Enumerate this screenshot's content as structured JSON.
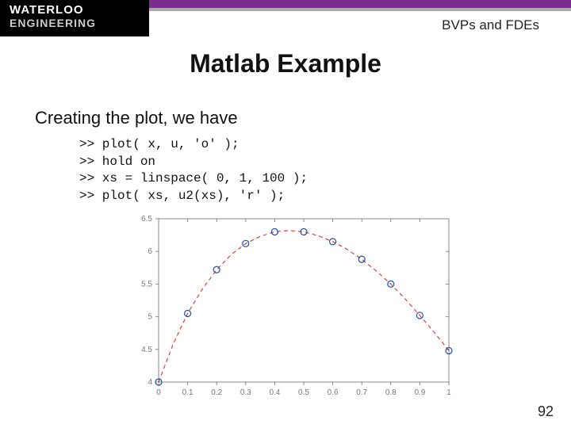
{
  "header": {
    "logo_line1": "WATERLOO",
    "logo_line2": "ENGINEERING",
    "section": "BVPs and FDEs",
    "purple": "#7b2d8e",
    "grey": "#aaaaaa"
  },
  "title": "Matlab Example",
  "body": "Creating the plot, we have",
  "code": [
    ">> plot( x, u, 'o' );",
    ">> hold on",
    ">> xs = linspace( 0, 1, 100 );",
    ">> plot( xs, u2(xs), 'r' );"
  ],
  "page_number": "92",
  "chart": {
    "type": "line-scatter",
    "background": "#ffffff",
    "axis_color": "#888888",
    "tick_color": "#777777",
    "tick_fontsize": 10,
    "marker_color": "#1f4fa8",
    "marker_style": "circle-open",
    "marker_size": 4,
    "line_color": "#d62020",
    "line_width": 1,
    "line_style": "dash",
    "xlim": [
      0,
      1
    ],
    "x_ticks": [
      0,
      0.1,
      0.2,
      0.3,
      0.4,
      0.5,
      0.6,
      0.7,
      0.8,
      0.9,
      1
    ],
    "ylim": [
      4,
      6.5
    ],
    "y_ticks": [
      4,
      4.5,
      5,
      5.5,
      6,
      6.5
    ],
    "markers": [
      {
        "x": 0.0,
        "y": 4.0
      },
      {
        "x": 0.1,
        "y": 5.05
      },
      {
        "x": 0.2,
        "y": 5.72
      },
      {
        "x": 0.3,
        "y": 6.12
      },
      {
        "x": 0.4,
        "y": 6.3
      },
      {
        "x": 0.5,
        "y": 6.3
      },
      {
        "x": 0.6,
        "y": 6.15
      },
      {
        "x": 0.7,
        "y": 5.88
      },
      {
        "x": 0.8,
        "y": 5.5
      },
      {
        "x": 0.9,
        "y": 5.02
      },
      {
        "x": 1.0,
        "y": 4.48
      }
    ],
    "curve": [
      {
        "x": 0.0,
        "y": 4.0
      },
      {
        "x": 0.05,
        "y": 4.58
      },
      {
        "x": 0.1,
        "y": 5.05
      },
      {
        "x": 0.15,
        "y": 5.42
      },
      {
        "x": 0.2,
        "y": 5.72
      },
      {
        "x": 0.25,
        "y": 5.95
      },
      {
        "x": 0.3,
        "y": 6.12
      },
      {
        "x": 0.35,
        "y": 6.23
      },
      {
        "x": 0.4,
        "y": 6.3
      },
      {
        "x": 0.45,
        "y": 6.32
      },
      {
        "x": 0.5,
        "y": 6.3
      },
      {
        "x": 0.55,
        "y": 6.24
      },
      {
        "x": 0.6,
        "y": 6.15
      },
      {
        "x": 0.65,
        "y": 6.03
      },
      {
        "x": 0.7,
        "y": 5.88
      },
      {
        "x": 0.75,
        "y": 5.7
      },
      {
        "x": 0.8,
        "y": 5.5
      },
      {
        "x": 0.85,
        "y": 5.27
      },
      {
        "x": 0.9,
        "y": 5.02
      },
      {
        "x": 0.95,
        "y": 4.76
      },
      {
        "x": 1.0,
        "y": 4.48
      }
    ]
  }
}
